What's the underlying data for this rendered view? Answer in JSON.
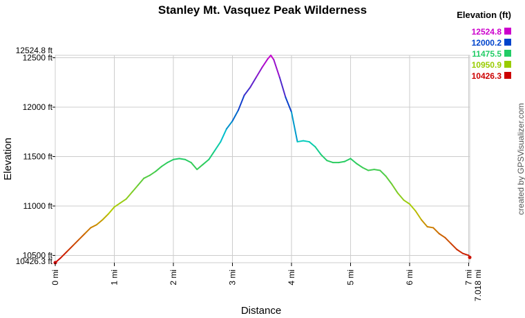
{
  "chart_data": {
    "type": "line",
    "title": "Stanley Mt. Vasquez Peak Wilderness",
    "xlabel": "Distance",
    "ylabel": "Elevation",
    "xlim": [
      0,
      7.018
    ],
    "ylim": [
      10426.3,
      12524.8
    ],
    "x_ticks": [
      0,
      1,
      2,
      3,
      4,
      5,
      6,
      7
    ],
    "x_tick_labels": [
      "0 mi",
      "1 mi",
      "2 mi",
      "3 mi",
      "4 mi",
      "5 mi",
      "6 mi",
      "7 mi"
    ],
    "x_end_label": "7.018 mi",
    "y_ticks": [
      10500,
      11000,
      11500,
      12000,
      12500
    ],
    "y_tick_labels": [
      "10500 ft",
      "11000 ft",
      "11500 ft",
      "12000 ft",
      "12500 ft"
    ],
    "y_min_label": "10426.3 ft",
    "y_max_label": "12524.8 ft",
    "grid": true,
    "legend": {
      "title": "Elevation (ft)",
      "placement": "top-right",
      "entries": [
        {
          "label": "12524.8",
          "color": "#cc00cc"
        },
        {
          "label": "12000.2",
          "color": "#0044cc"
        },
        {
          "label": "11475.5",
          "color": "#22cc66"
        },
        {
          "label": "10950.9",
          "color": "#99cc00"
        },
        {
          "label": "10426.3",
          "color": "#cc0000"
        }
      ]
    },
    "credit": "created by GPSVisualizer.com",
    "series": [
      {
        "x": [
          0,
          0.1,
          0.2,
          0.3,
          0.4,
          0.5,
          0.6,
          0.7,
          0.8,
          0.9,
          1.0,
          1.1,
          1.2,
          1.3,
          1.4,
          1.5,
          1.6,
          1.7,
          1.8,
          1.9,
          2.0,
          2.1,
          2.2,
          2.3,
          2.4,
          2.5,
          2.6,
          2.7,
          2.8,
          2.9,
          3.0,
          3.1,
          3.2,
          3.3,
          3.4,
          3.5,
          3.6,
          3.65,
          3.7,
          3.8,
          3.9,
          4.0,
          4.1,
          4.2,
          4.3,
          4.4,
          4.5,
          4.6,
          4.7,
          4.8,
          4.9,
          5.0,
          5.1,
          5.2,
          5.3,
          5.4,
          5.5,
          5.6,
          5.7,
          5.8,
          5.9,
          6.0,
          6.1,
          6.2,
          6.3,
          6.4,
          6.5,
          6.6,
          6.7,
          6.8,
          6.9,
          7.0,
          7.018
        ],
        "y": [
          10426.3,
          10480,
          10540,
          10600,
          10660,
          10720,
          10780,
          10810,
          10860,
          10920,
          10990,
          11030,
          11070,
          11140,
          11210,
          11280,
          11310,
          11350,
          11400,
          11440,
          11470,
          11480,
          11470,
          11440,
          11370,
          11420,
          11470,
          11560,
          11650,
          11780,
          11860,
          11970,
          12120,
          12200,
          12300,
          12400,
          12490,
          12524.8,
          12480,
          12300,
          12100,
          11950,
          11650,
          11660,
          11650,
          11600,
          11520,
          11460,
          11440,
          11440,
          11450,
          11480,
          11430,
          11390,
          11360,
          11370,
          11360,
          11300,
          11220,
          11130,
          11060,
          11020,
          10950,
          10860,
          10790,
          10780,
          10720,
          10680,
          10620,
          10560,
          10520,
          10500,
          10480
        ]
      }
    ]
  }
}
